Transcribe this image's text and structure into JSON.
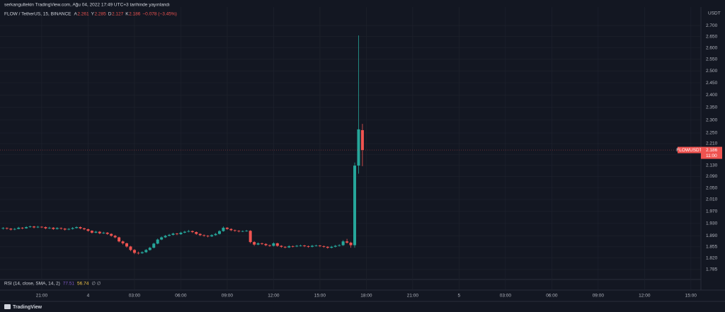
{
  "header": {
    "published": "serkangultekin TradingView.com, Ağu 04, 2022 17:49 UTC+3 tarihinde yayınlandı",
    "symbol": "FLOW / TetherUS, 15, BINANCE",
    "ohlc_labels": [
      "A",
      "Y",
      "D",
      "K"
    ],
    "change": "−0.078 (−3.45%)"
  },
  "chart_data": {
    "type": "candlestick",
    "currency": "USDT",
    "symbol_tag": "FLOWUSDT",
    "countdown": "11:00",
    "log_scale": true,
    "grid": true,
    "up_color": "#26a69a",
    "down_color": "#ef5350",
    "ylim": [
      1.755,
      2.786
    ],
    "yticks": [
      {
        "value": 2.7,
        "label": "2.700"
      },
      {
        "value": 2.65,
        "label": "2.650"
      },
      {
        "value": 2.6,
        "label": "2.600"
      },
      {
        "value": 2.55,
        "label": "2.550"
      },
      {
        "value": 2.5,
        "label": "2.500"
      },
      {
        "value": 2.45,
        "label": "2.450"
      },
      {
        "value": 2.4,
        "label": "2.400"
      },
      {
        "value": 2.35,
        "label": "2.350"
      },
      {
        "value": 2.3,
        "label": "2.300"
      },
      {
        "value": 2.25,
        "label": "2.250"
      },
      {
        "value": 2.21,
        "label": "2.210"
      },
      {
        "value": 2.17,
        "label": "2.170"
      },
      {
        "value": 2.13,
        "label": "2.130"
      },
      {
        "value": 2.09,
        "label": "2.090"
      },
      {
        "value": 2.05,
        "label": "2.050"
      },
      {
        "value": 2.01,
        "label": "2.010"
      },
      {
        "value": 1.97,
        "label": "1.970"
      },
      {
        "value": 1.93,
        "label": "1.930"
      },
      {
        "value": 1.89,
        "label": "1.890"
      },
      {
        "value": 1.855,
        "label": "1.855"
      },
      {
        "value": 1.82,
        "label": "1.820"
      },
      {
        "value": 1.785,
        "label": "1.785"
      }
    ],
    "xlim": [
      18.3,
      63.65
    ],
    "xticks": [
      {
        "value": 21,
        "label": "21:00"
      },
      {
        "value": 24,
        "label": "4"
      },
      {
        "value": 27,
        "label": "03:00"
      },
      {
        "value": 30,
        "label": "06:00"
      },
      {
        "value": 33,
        "label": "09:00"
      },
      {
        "value": 36,
        "label": "12:00"
      },
      {
        "value": 39,
        "label": "15:00"
      },
      {
        "value": 42,
        "label": "18:00"
      },
      {
        "value": 45,
        "label": "21:00"
      },
      {
        "value": 48,
        "label": "5"
      },
      {
        "value": 51,
        "label": "03:00"
      },
      {
        "value": 54,
        "label": "06:00"
      },
      {
        "value": 57,
        "label": "09:00"
      },
      {
        "value": 60,
        "label": "12:00"
      },
      {
        "value": 63,
        "label": "15:00"
      }
    ],
    "x": [
      18.5,
      18.75,
      19,
      19.25,
      19.5,
      19.75,
      20,
      20.25,
      20.5,
      20.75,
      21,
      21.25,
      21.5,
      21.75,
      22,
      22.25,
      22.5,
      22.75,
      23,
      23.25,
      23.5,
      23.75,
      24,
      24.25,
      24.5,
      24.75,
      25,
      25.25,
      25.5,
      25.75,
      26,
      26.25,
      26.5,
      26.75,
      27,
      27.25,
      27.5,
      27.75,
      28,
      28.25,
      28.5,
      28.75,
      29,
      29.25,
      29.5,
      29.75,
      30,
      30.25,
      30.5,
      30.75,
      31,
      31.25,
      31.5,
      31.75,
      32,
      32.25,
      32.5,
      32.75,
      33,
      33.25,
      33.5,
      33.75,
      34,
      34.25,
      34.5,
      34.75,
      35,
      35.25,
      35.5,
      35.75,
      36,
      36.25,
      36.5,
      36.75,
      37,
      37.25,
      37.5,
      37.75,
      38,
      38.25,
      38.5,
      38.75,
      39,
      39.25,
      39.5,
      39.75,
      40,
      40.25,
      40.5,
      40.75,
      41,
      41.25,
      41.5,
      41.75
    ],
    "candles": [
      [
        1.913,
        1.918,
        1.91,
        1.915
      ],
      [
        1.915,
        1.917,
        1.91,
        1.913
      ],
      [
        1.913,
        1.915,
        1.907,
        1.91
      ],
      [
        1.91,
        1.915,
        1.908,
        1.912
      ],
      [
        1.912,
        1.919,
        1.911,
        1.916
      ],
      [
        1.916,
        1.918,
        1.911,
        1.914
      ],
      [
        1.914,
        1.921,
        1.913,
        1.918
      ],
      [
        1.918,
        1.923,
        1.916,
        1.92
      ],
      [
        1.92,
        1.922,
        1.914,
        1.917
      ],
      [
        1.917,
        1.922,
        1.915,
        1.919
      ],
      [
        1.919,
        1.921,
        1.915,
        1.918
      ],
      [
        1.918,
        1.92,
        1.911,
        1.914
      ],
      [
        1.914,
        1.919,
        1.912,
        1.916
      ],
      [
        1.916,
        1.918,
        1.909,
        1.912
      ],
      [
        1.912,
        1.918,
        1.91,
        1.915
      ],
      [
        1.915,
        1.917,
        1.91,
        1.913
      ],
      [
        1.913,
        1.915,
        1.907,
        1.91
      ],
      [
        1.91,
        1.915,
        1.908,
        1.912
      ],
      [
        1.912,
        1.918,
        1.91,
        1.915
      ],
      [
        1.915,
        1.921,
        1.913,
        1.918
      ],
      [
        1.918,
        1.92,
        1.911,
        1.914
      ],
      [
        1.914,
        1.916,
        1.908,
        1.911
      ],
      [
        1.911,
        1.913,
        1.903,
        1.906
      ],
      [
        1.906,
        1.908,
        1.897,
        1.9
      ],
      [
        1.9,
        1.906,
        1.898,
        1.903
      ],
      [
        1.903,
        1.905,
        1.895,
        1.898
      ],
      [
        1.898,
        1.903,
        1.896,
        1.9
      ],
      [
        1.9,
        1.902,
        1.893,
        1.896
      ],
      [
        1.896,
        1.898,
        1.887,
        1.89
      ],
      [
        1.89,
        1.893,
        1.882,
        1.885
      ],
      [
        1.885,
        1.887,
        1.869,
        1.872
      ],
      [
        1.872,
        1.875,
        1.862,
        1.866
      ],
      [
        1.866,
        1.868,
        1.852,
        1.856
      ],
      [
        1.856,
        1.858,
        1.841,
        1.845
      ],
      [
        1.845,
        1.848,
        1.832,
        1.836
      ],
      [
        1.836,
        1.84,
        1.831,
        1.835
      ],
      [
        1.835,
        1.841,
        1.833,
        1.838
      ],
      [
        1.838,
        1.848,
        1.836,
        1.845
      ],
      [
        1.845,
        1.855,
        1.843,
        1.852
      ],
      [
        1.852,
        1.868,
        1.85,
        1.865
      ],
      [
        1.865,
        1.881,
        1.863,
        1.878
      ],
      [
        1.878,
        1.888,
        1.876,
        1.885
      ],
      [
        1.885,
        1.893,
        1.883,
        1.89
      ],
      [
        1.89,
        1.896,
        1.888,
        1.893
      ],
      [
        1.893,
        1.9,
        1.891,
        1.897
      ],
      [
        1.897,
        1.899,
        1.892,
        1.895
      ],
      [
        1.895,
        1.903,
        1.893,
        1.9
      ],
      [
        1.9,
        1.906,
        1.898,
        1.903
      ],
      [
        1.903,
        1.909,
        1.901,
        1.905
      ],
      [
        1.905,
        1.907,
        1.899,
        1.902
      ],
      [
        1.902,
        1.904,
        1.893,
        1.896
      ],
      [
        1.896,
        1.898,
        1.889,
        1.892
      ],
      [
        1.892,
        1.894,
        1.887,
        1.89
      ],
      [
        1.89,
        1.892,
        1.885,
        1.888
      ],
      [
        1.888,
        1.895,
        1.886,
        1.892
      ],
      [
        1.892,
        1.899,
        1.89,
        1.896
      ],
      [
        1.896,
        1.908,
        1.894,
        1.905
      ],
      [
        1.905,
        1.92,
        1.903,
        1.916
      ],
      [
        1.916,
        1.918,
        1.909,
        1.912
      ],
      [
        1.912,
        1.914,
        1.905,
        1.908
      ],
      [
        1.908,
        1.91,
        1.903,
        1.906
      ],
      [
        1.906,
        1.908,
        1.901,
        1.904
      ],
      [
        1.904,
        1.907,
        1.902,
        1.905
      ],
      [
        1.905,
        1.909,
        1.903,
        1.906
      ],
      [
        1.906,
        1.908,
        1.866,
        1.87
      ],
      [
        1.87,
        1.873,
        1.858,
        1.862
      ],
      [
        1.862,
        1.869,
        1.86,
        1.866
      ],
      [
        1.866,
        1.868,
        1.861,
        1.864
      ],
      [
        1.864,
        1.866,
        1.857,
        1.86
      ],
      [
        1.86,
        1.862,
        1.855,
        1.858
      ],
      [
        1.858,
        1.869,
        1.856,
        1.866
      ],
      [
        1.866,
        1.868,
        1.855,
        1.858
      ],
      [
        1.858,
        1.86,
        1.852,
        1.855
      ],
      [
        1.855,
        1.857,
        1.85,
        1.853
      ],
      [
        1.853,
        1.86,
        1.851,
        1.857
      ],
      [
        1.857,
        1.859,
        1.853,
        1.856
      ],
      [
        1.856,
        1.861,
        1.854,
        1.858
      ],
      [
        1.858,
        1.862,
        1.856,
        1.859
      ],
      [
        1.859,
        1.861,
        1.854,
        1.857
      ],
      [
        1.857,
        1.859,
        1.852,
        1.855
      ],
      [
        1.855,
        1.861,
        1.853,
        1.858
      ],
      [
        1.858,
        1.862,
        1.856,
        1.859
      ],
      [
        1.859,
        1.861,
        1.854,
        1.857
      ],
      [
        1.857,
        1.859,
        1.852,
        1.855
      ],
      [
        1.855,
        1.857,
        1.849,
        1.852
      ],
      [
        1.852,
        1.858,
        1.85,
        1.855
      ],
      [
        1.855,
        1.861,
        1.853,
        1.858
      ],
      [
        1.858,
        1.863,
        1.856,
        1.86
      ],
      [
        1.86,
        1.876,
        1.858,
        1.872
      ],
      [
        1.872,
        1.88,
        1.865,
        1.868
      ],
      [
        1.868,
        1.871,
        1.852,
        1.86
      ],
      [
        1.86,
        2.14,
        1.852,
        2.129
      ],
      [
        2.129,
        2.655,
        2.1,
        2.264
      ],
      [
        2.261,
        2.285,
        2.127,
        2.186
      ]
    ]
  },
  "rsi": {
    "label": "RSI (14, close, SMA, 14, 2)",
    "values": [
      77.51,
      56.74
    ],
    "extra": "∅ ∅"
  },
  "footer": "TradingView"
}
